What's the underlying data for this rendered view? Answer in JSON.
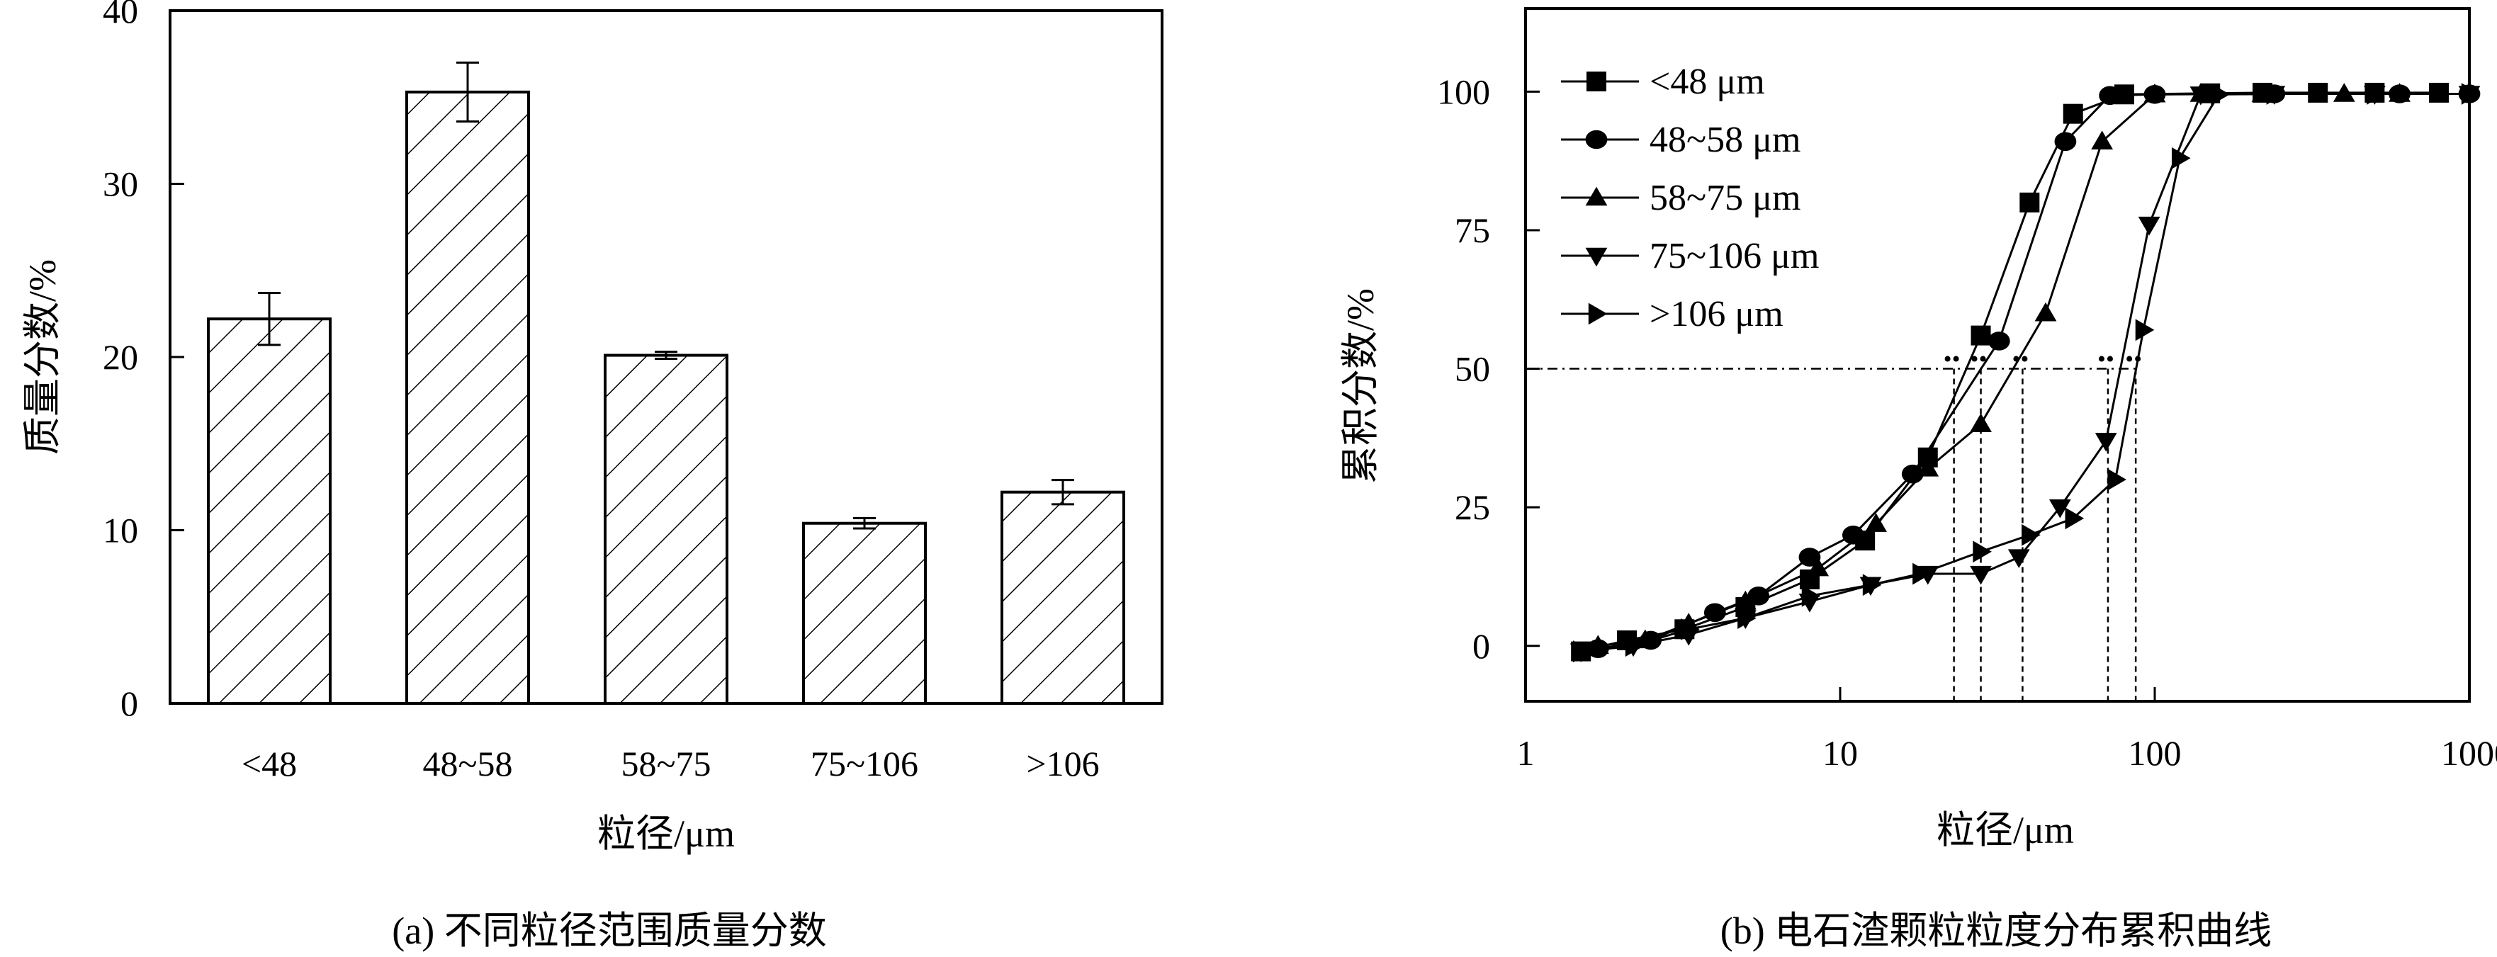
{
  "chart_data": [
    {
      "type": "bar",
      "caption": "(a) 不同粒径范围质量分数",
      "xlabel": "粒径/μm",
      "ylabel": "质量分数/%",
      "ylim": [
        0,
        40
      ],
      "yticks": [
        0,
        10,
        20,
        30,
        40
      ],
      "categories": [
        "<48",
        "48~58",
        "58~75",
        "75~106",
        ">106"
      ],
      "values": [
        22.2,
        35.3,
        20.1,
        10.4,
        12.2
      ],
      "errors": [
        1.5,
        1.7,
        0.2,
        0.3,
        0.7
      ],
      "fill": "diagonal-hatch",
      "grid": false
    },
    {
      "type": "line",
      "caption": "(b) 电石渣颗粒粒度分布累积曲线",
      "xlabel": "粒径/μm",
      "ylabel": "累积分数/%",
      "xscale": "log",
      "xlim": [
        1,
        1000
      ],
      "xticks": [
        1,
        10,
        100,
        1000
      ],
      "ylim": [
        -10,
        115
      ],
      "yticks": [
        0,
        25,
        50,
        75,
        100
      ],
      "legend_position": "top-left",
      "reference_line_y": 50,
      "d50_markers_x": [
        23,
        28,
        38,
        71,
        87
      ],
      "series": [
        {
          "name": "<48 μm",
          "marker": "square",
          "x": [
            1.5,
            2.1,
            3.2,
            5,
            8,
            12,
            19,
            28,
            40,
            55,
            80,
            150,
            220,
            330,
            500,
            800
          ],
          "y": [
            -1,
            1,
            3,
            7,
            12,
            19,
            34,
            56,
            80,
            96,
            99.5,
            99.7,
            99.8,
            99.8,
            99.8,
            99.8
          ]
        },
        {
          "name": "48~58 μm",
          "marker": "circle",
          "x": [
            1.7,
            2.5,
            4,
            5.5,
            8,
            11,
            17,
            32,
            52,
            72,
            100,
            240,
            600,
            1000
          ],
          "y": [
            -0.5,
            1,
            6,
            9,
            16,
            20,
            31,
            55,
            91,
            99.3,
            99.5,
            99.6,
            99.6,
            99.6
          ]
        },
        {
          "name": "58~75 μm",
          "marker": "triangle-up",
          "x": [
            1.7,
            2.4,
            3.3,
            5,
            8.5,
            13,
            19,
            28,
            45,
            68,
            100,
            140,
            220,
            400,
            600
          ],
          "y": [
            0,
            1,
            4,
            8,
            14,
            22,
            32,
            40,
            60,
            91,
            99.5,
            99.6,
            99.6,
            99.6,
            99.6
          ]
        },
        {
          "name": "75~106 μm",
          "marker": "triangle-down",
          "x": [
            1.5,
            2.2,
            3.3,
            5,
            8,
            12.5,
            19,
            28,
            37,
            50,
            70,
            96,
            140,
            240,
            500,
            1000
          ],
          "y": [
            -1,
            0,
            2,
            5,
            8,
            11,
            13,
            13,
            16,
            25,
            37,
            76,
            99.5,
            99.6,
            99.6,
            99.6
          ]
        },
        {
          "name": ">106 μm",
          "marker": "triangle-right",
          "x": [
            1.5,
            2.2,
            3.3,
            5,
            8,
            12.5,
            18,
            28,
            40,
            55,
            75,
            92,
            120,
            160,
            240,
            500,
            1000
          ],
          "y": [
            -1,
            0,
            3,
            5,
            9,
            11,
            13,
            17,
            20,
            23,
            30,
            57,
            88,
            99.5,
            99.6,
            99.6,
            99.6
          ]
        }
      ]
    }
  ]
}
